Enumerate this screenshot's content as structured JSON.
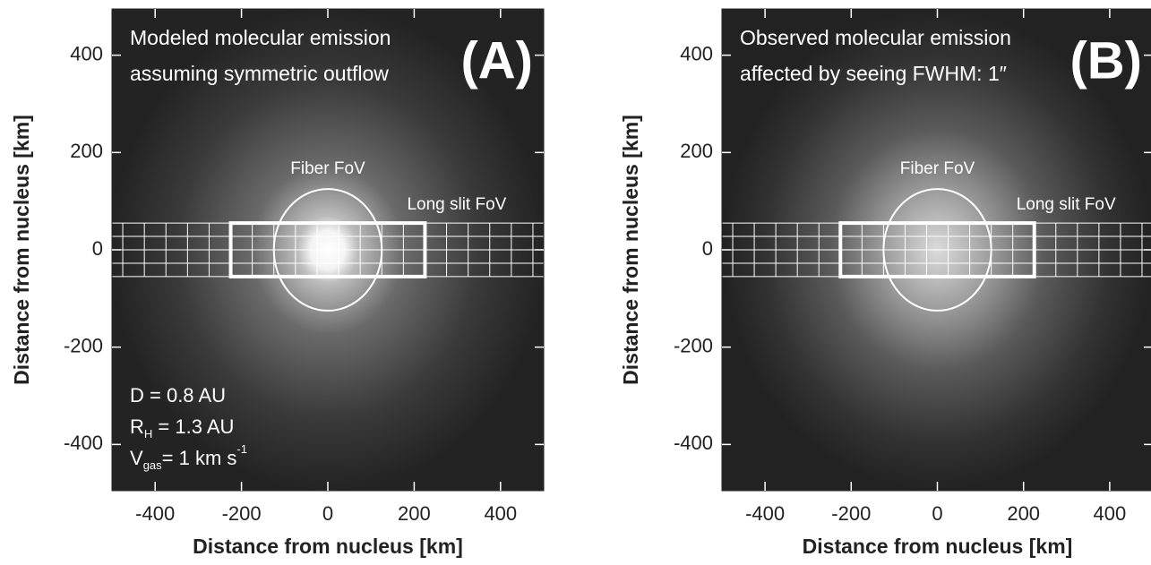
{
  "chart_data": [
    {
      "type": "image",
      "panel_label": "(A)",
      "title_lines": [
        "Modeled molecular emission",
        "assuming symmetric outflow"
      ],
      "xlabel": "Distance from nucleus [km]",
      "ylabel": "Distance from nucleus [km]",
      "xlim": [
        -500,
        500
      ],
      "ylim": [
        -495,
        495
      ],
      "xticks": [
        -400,
        -200,
        0,
        200,
        400
      ],
      "yticks": [
        -400,
        -200,
        0,
        200,
        400
      ],
      "fiber_label": "Fiber FoV",
      "fiber_radius": 125,
      "slit_label": "Long slit FoV",
      "slit_x": [
        -225,
        225
      ],
      "slit_y": [
        -55,
        55
      ],
      "parameters": [
        [
          {
            "text": "D = 0.8 AU"
          }
        ],
        [
          {
            "text": "R"
          },
          {
            "sub": "H"
          },
          {
            "text": " = 1.3 AU"
          }
        ],
        [
          {
            "text": "V"
          },
          {
            "sub": "gas"
          },
          {
            "text": "= 1 km s"
          },
          {
            "sup": "-1"
          }
        ]
      ]
    },
    {
      "type": "image",
      "panel_label": "(B)",
      "title_lines": [
        "Observed molecular emission",
        "affected by seeing  FWHM: 1″"
      ],
      "xlabel": "Distance from nucleus [km]",
      "ylabel": "Distance from nucleus [km]",
      "xlim": [
        -500,
        500
      ],
      "ylim": [
        -495,
        495
      ],
      "xticks": [
        -400,
        -200,
        0,
        200,
        400
      ],
      "yticks": [
        -400,
        -200,
        0,
        200,
        400
      ],
      "fiber_label": "Fiber FoV",
      "fiber_radius": 125,
      "slit_label": "Long slit FoV",
      "slit_x": [
        -225,
        225
      ],
      "slit_y": [
        -55,
        55
      ]
    }
  ]
}
